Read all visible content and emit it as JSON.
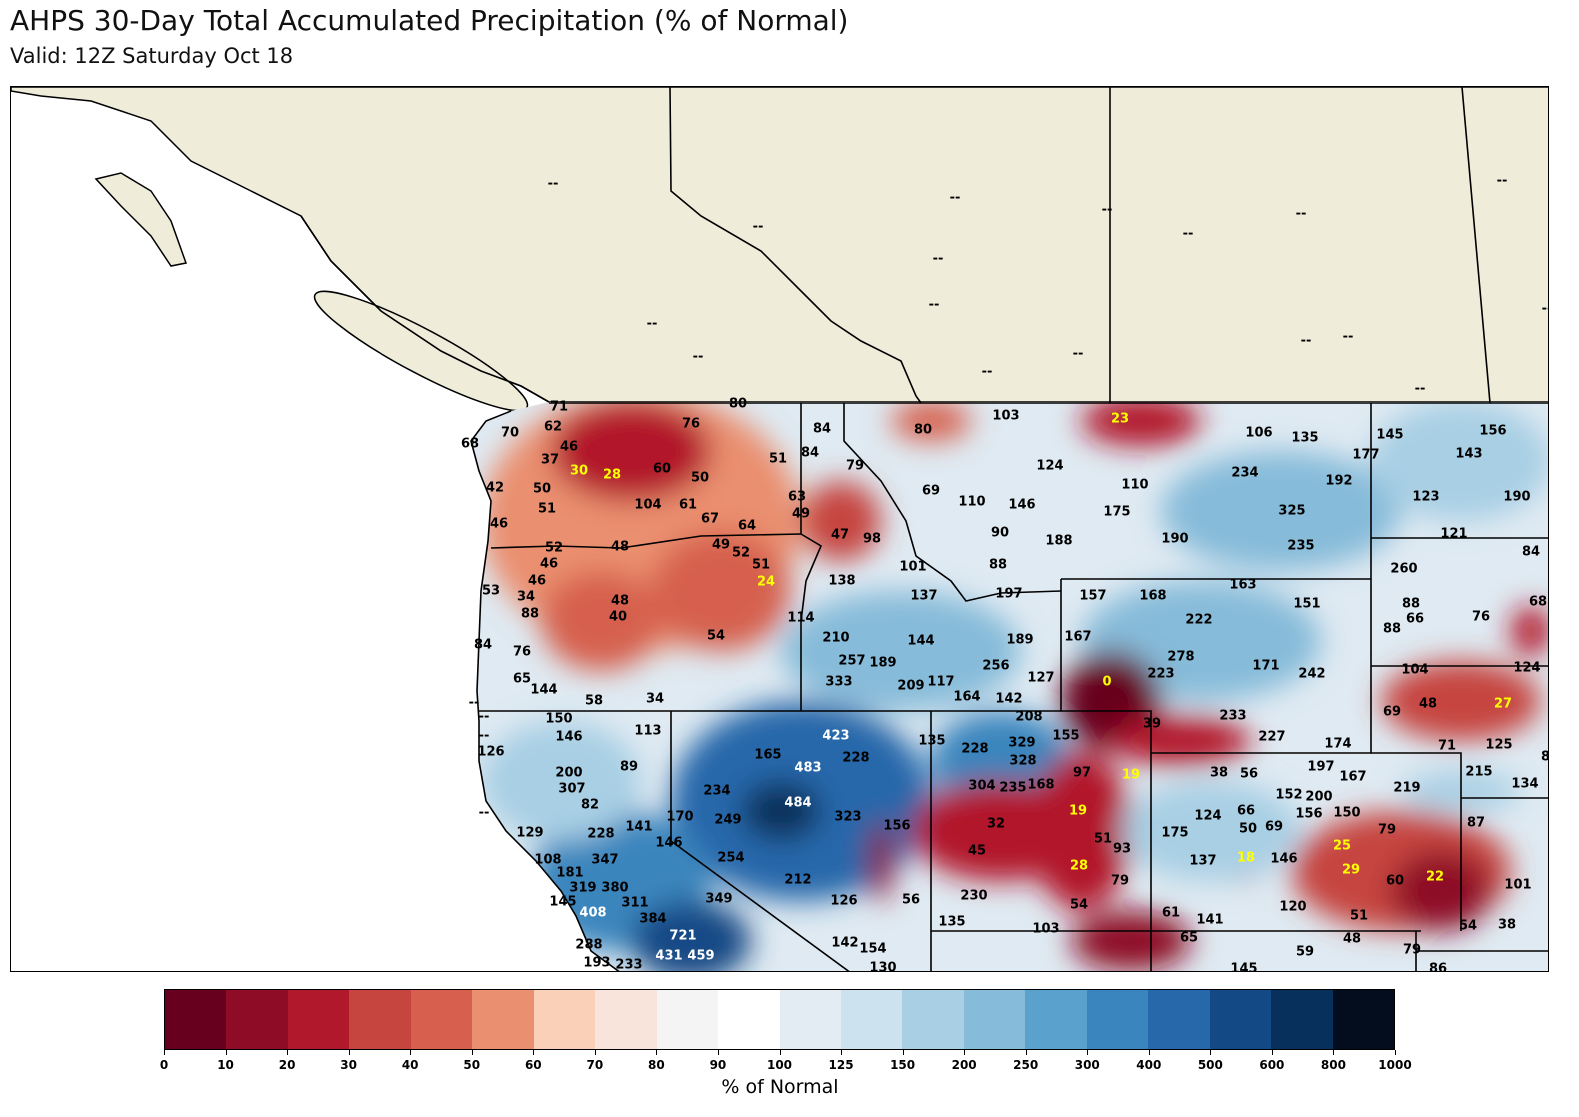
{
  "title": "AHPS 30-Day Total Accumulated Precipitation (% of Normal)",
  "subtitle": "Valid: 12Z Saturday Oct 18",
  "colorbar": {
    "label": "% of Normal",
    "ticks": [
      "0",
      "10",
      "20",
      "30",
      "40",
      "50",
      "60",
      "70",
      "80",
      "90",
      "100",
      "125",
      "150",
      "200",
      "250",
      "300",
      "400",
      "500",
      "600",
      "800",
      "1000"
    ],
    "colors": [
      "#67001f",
      "#8e0c25",
      "#b2182b",
      "#c6453f",
      "#d6604d",
      "#ea8f70",
      "#fbd0b9",
      "#f8e4da",
      "#f4f4f4",
      "#ffffff",
      "#e3ecf3",
      "#cce2ee",
      "#a8cfe4",
      "#86bbd9",
      "#5aa2cd",
      "#3a85bd",
      "#2768aa",
      "#134a85",
      "#08305c",
      "#030d1e"
    ]
  },
  "map": {
    "colors": {
      "land_canada": "#efedda",
      "ocean": "#ffffff",
      "low_label": "#ffff00",
      "high_label": "#ffffff"
    },
    "labels": [
      "--",
      "--",
      "--",
      "--",
      "--",
      "--",
      "--",
      "--",
      "--",
      "--",
      "--",
      "--",
      "--",
      "--",
      "--",
      "--",
      "--",
      "--",
      "--",
      "--",
      "--",
      "71",
      "80",
      "76",
      "70",
      "68",
      "62",
      "46",
      "37",
      "30",
      "28",
      "60",
      "50",
      "51",
      "42",
      "50",
      "51",
      "104",
      "61",
      "67",
      "64",
      "63",
      "49",
      "46",
      "52",
      "48",
      "49",
      "52",
      "51",
      "46",
      "46",
      "24",
      "53",
      "34",
      "88",
      "48",
      "40",
      "54",
      "84",
      "76",
      "65",
      "144",
      "58",
      "34",
      "114",
      "84",
      "84",
      "79",
      "80",
      "103",
      "23",
      "106",
      "135",
      "145",
      "156",
      "177",
      "143",
      "124",
      "110",
      "234",
      "192",
      "69",
      "110",
      "146",
      "175",
      "325",
      "123",
      "190",
      "47",
      "98",
      "90",
      "188",
      "190",
      "235",
      "121",
      "84",
      "101",
      "88",
      "138",
      "137",
      "197",
      "157",
      "168",
      "163",
      "260",
      "151",
      "222",
      "88",
      "66",
      "76",
      "68",
      "88",
      "210",
      "144",
      "189",
      "167",
      "257",
      "189",
      "256",
      "278",
      "223",
      "171",
      "242",
      "104",
      "124",
      "333",
      "209",
      "117",
      "164",
      "127",
      "142",
      "0",
      "48",
      "27",
      "69",
      "208",
      "39",
      "233",
      "155",
      "227",
      "174",
      "71",
      "125",
      "84",
      "150",
      "113",
      "146",
      "423",
      "135",
      "126",
      "228",
      "329",
      "165",
      "228",
      "328",
      "89",
      "200",
      "483",
      "97",
      "19",
      "38",
      "56",
      "197",
      "167",
      "215",
      "134",
      "307",
      "234",
      "304",
      "235",
      "168",
      "219",
      "152",
      "200",
      "150",
      "82",
      "484",
      "19",
      "66",
      "124",
      "156",
      "141",
      "228",
      "170",
      "249",
      "323",
      "32",
      "50",
      "69",
      "87",
      "129",
      "156",
      "79",
      "175",
      "51",
      "146",
      "93",
      "25",
      "45",
      "254",
      "347",
      "108",
      "137",
      "18",
      "146",
      "28",
      "29",
      "181",
      "22",
      "319",
      "380",
      "212",
      "79",
      "60",
      "101",
      "145",
      "311",
      "349",
      "126",
      "56",
      "230",
      "54",
      "120",
      "408",
      "384",
      "61",
      "141",
      "51",
      "135",
      "103",
      "54",
      "38",
      "65",
      "48",
      "721",
      "288",
      "142",
      "154",
      "59",
      "79",
      "431",
      "459",
      "193",
      "233",
      "130",
      "145",
      "86"
    ]
  }
}
